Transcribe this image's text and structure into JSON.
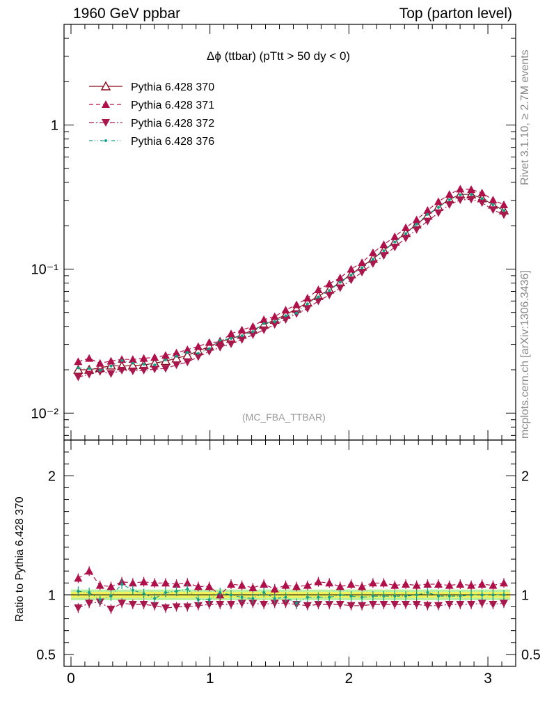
{
  "header": {
    "left": "1960 GeV ppbar",
    "right": "Top (parton level)"
  },
  "plot_title": "Δϕ (ttbar) (pTtt > 50 dy < 0)",
  "watermark": "(MC_FBA_TTBAR)",
  "side_labels": {
    "rivet": "Rivet 3.1.10, ≥ 2.7M events",
    "mcplots": "mcplots.cern.ch [arXiv:1306.3436]"
  },
  "ratio_ylabel": "Ratio to Pythia 6.428 370",
  "chart_data": [
    {
      "type": "line",
      "panel": "main",
      "yscale": "log",
      "xlim": [
        -0.05,
        3.2
      ],
      "ylim": [
        0.0065,
        5
      ],
      "x_ticks": [
        "0",
        "1",
        "2",
        "3"
      ],
      "y_ticks": [
        {
          "value": 0.01,
          "label": "10⁻²"
        },
        {
          "value": 0.1,
          "label": "10⁻¹"
        },
        {
          "value": 1,
          "label": "1"
        }
      ],
      "legend_position": "top-left",
      "x": [
        0.052,
        0.131,
        0.209,
        0.288,
        0.366,
        0.445,
        0.524,
        0.602,
        0.681,
        0.759,
        0.838,
        0.916,
        0.995,
        1.073,
        1.152,
        1.23,
        1.309,
        1.388,
        1.466,
        1.545,
        1.623,
        1.702,
        1.78,
        1.859,
        1.937,
        2.016,
        2.094,
        2.173,
        2.251,
        2.33,
        2.409,
        2.487,
        2.566,
        2.644,
        2.723,
        2.801,
        2.88,
        2.958,
        3.037,
        3.115
      ],
      "series": [
        {
          "name": "Pythia 6.428 370",
          "color": "#8b0a1a",
          "marker": "triangle-open",
          "dash": "solid",
          "values": [
            0.02,
            0.02,
            0.0206,
            0.0214,
            0.0212,
            0.0214,
            0.0216,
            0.0222,
            0.023,
            0.024,
            0.0252,
            0.027,
            0.029,
            0.0312,
            0.0328,
            0.035,
            0.0378,
            0.041,
            0.0444,
            0.0482,
            0.053,
            0.0585,
            0.065,
            0.072,
            0.081,
            0.092,
            0.104,
            0.118,
            0.135,
            0.155,
            0.178,
            0.204,
            0.235,
            0.27,
            0.305,
            0.33,
            0.33,
            0.31,
            0.28,
            0.255
          ]
        },
        {
          "name": "Pythia 6.428 371",
          "color": "#b0104a",
          "marker": "triangle-up",
          "dash": "dashed",
          "values": [
            0.0228,
            0.024,
            0.0222,
            0.023,
            0.0236,
            0.0236,
            0.024,
            0.0244,
            0.0252,
            0.0262,
            0.0276,
            0.029,
            0.031,
            0.0312,
            0.0356,
            0.0378,
            0.04,
            0.0446,
            0.0468,
            0.052,
            0.0566,
            0.063,
            0.072,
            0.079,
            0.087,
            0.1,
            0.111,
            0.13,
            0.148,
            0.168,
            0.194,
            0.22,
            0.256,
            0.294,
            0.33,
            0.36,
            0.357,
            0.338,
            0.302,
            0.28
          ]
        },
        {
          "name": "Pythia 6.428 372",
          "color": "#a8184c",
          "marker": "triangle-down",
          "dash": "dashdot",
          "values": [
            0.0178,
            0.0186,
            0.0194,
            0.0188,
            0.0198,
            0.0196,
            0.0198,
            0.0202,
            0.0204,
            0.0216,
            0.0226,
            0.0246,
            0.0268,
            0.0286,
            0.0302,
            0.0324,
            0.035,
            0.0378,
            0.0412,
            0.0446,
            0.049,
            0.0532,
            0.06,
            0.066,
            0.074,
            0.084,
            0.095,
            0.109,
            0.124,
            0.142,
            0.164,
            0.188,
            0.215,
            0.246,
            0.28,
            0.302,
            0.305,
            0.289,
            0.258,
            0.238
          ]
        },
        {
          "name": "Pythia 6.428 376",
          "color": "#13a08a",
          "marker": "dot",
          "dash": "dashdotdot",
          "values": [
            0.0206,
            0.0204,
            0.0198,
            0.0212,
            0.0232,
            0.0222,
            0.0218,
            0.0216,
            0.0234,
            0.0248,
            0.0264,
            0.026,
            0.028,
            0.032,
            0.033,
            0.0344,
            0.0368,
            0.0418,
            0.0432,
            0.0474,
            0.0494,
            0.0574,
            0.064,
            0.071,
            0.081,
            0.091,
            0.102,
            0.117,
            0.134,
            0.154,
            0.176,
            0.205,
            0.24,
            0.268,
            0.303,
            0.328,
            0.33,
            0.309,
            0.28,
            0.255
          ]
        }
      ]
    },
    {
      "type": "line",
      "panel": "ratio",
      "ylabel": "Ratio to Pythia 6.428 370",
      "xlim": [
        -0.05,
        3.2
      ],
      "ylim": [
        0.4,
        2.3
      ],
      "x_ticks": [
        "0",
        "1",
        "2",
        "3"
      ],
      "y_ticks": [
        "0.5",
        "1",
        "2"
      ],
      "band": {
        "inner": [
          0.975,
          1.025
        ],
        "outer": [
          0.955,
          1.045
        ],
        "inner_color": "#f2f25a",
        "outer_color": "#b8f0a0"
      },
      "series": [
        {
          "name": "Pythia 6.428 371",
          "values": [
            1.14,
            1.2,
            1.08,
            1.07,
            1.11,
            1.1,
            1.11,
            1.1,
            1.1,
            1.09,
            1.1,
            1.07,
            1.07,
            1.0,
            1.09,
            1.08,
            1.06,
            1.09,
            1.05,
            1.08,
            1.07,
            1.08,
            1.11,
            1.1,
            1.07,
            1.09,
            1.07,
            1.1,
            1.1,
            1.08,
            1.09,
            1.08,
            1.09,
            1.09,
            1.08,
            1.09,
            1.08,
            1.09,
            1.08,
            1.1
          ]
        },
        {
          "name": "Pythia 6.428 372",
          "values": [
            0.89,
            0.93,
            0.94,
            0.88,
            0.93,
            0.92,
            0.92,
            0.91,
            0.89,
            0.9,
            0.9,
            0.91,
            0.92,
            0.92,
            0.92,
            0.93,
            0.93,
            0.92,
            0.93,
            0.93,
            0.92,
            0.91,
            0.92,
            0.92,
            0.92,
            0.91,
            0.91,
            0.92,
            0.92,
            0.92,
            0.92,
            0.92,
            0.91,
            0.91,
            0.92,
            0.92,
            0.92,
            0.93,
            0.92,
            0.93
          ]
        },
        {
          "name": "Pythia 6.428 376",
          "values": [
            1.03,
            1.02,
            0.96,
            0.99,
            1.09,
            1.04,
            1.01,
            0.97,
            1.02,
            1.03,
            1.05,
            0.96,
            0.96,
            1.02,
            1.0,
            0.98,
            0.97,
            1.02,
            0.97,
            0.98,
            0.93,
            0.98,
            0.98,
            0.98,
            1.0,
            0.99,
            0.98,
            0.99,
            0.99,
            0.99,
            0.99,
            1.0,
            1.02,
            0.99,
            0.99,
            0.99,
            1.0,
            1.0,
            1.0,
            1.0
          ]
        }
      ]
    }
  ]
}
